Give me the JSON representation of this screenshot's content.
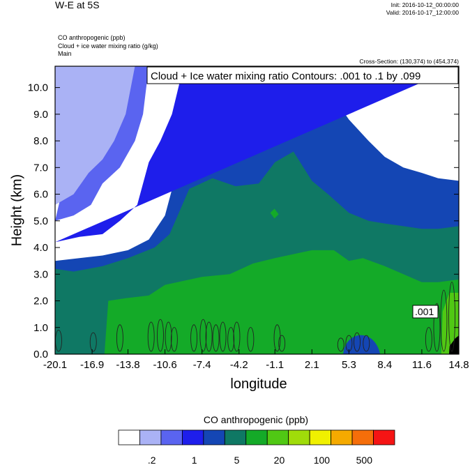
{
  "header": {
    "title": "W-E at 5S",
    "init": "Init: 2016-10-12_00:00:00",
    "valid": "Valid: 2016-10-17_12:00:00",
    "var1": "CO anthropogenic   (ppb)",
    "var2": "Cloud + ice water mixing ratio   (g/kg)",
    "var3": "Main",
    "cross_section": "Cross-Section: (130,374) to (454,374)"
  },
  "chart_data": {
    "type": "heatmap",
    "xlabel": "longitude",
    "ylabel": "Height (km)",
    "x_ticks": [
      "-20.1",
      "-16.9",
      "-13.8",
      "-10.6",
      "-7.4",
      "-4.2",
      "-1.1",
      "2.1",
      "5.3",
      "8.4",
      "11.6",
      "14.8"
    ],
    "y_ticks": [
      "0.0",
      "1.0",
      "2.0",
      "3.0",
      "4.0",
      "5.0",
      "6.0",
      "7.0",
      "8.0",
      "9.0",
      "10.0"
    ],
    "xlim": [
      -20.1,
      14.8
    ],
    "ylim": [
      0,
      10.8
    ],
    "contour_info": "Cloud + Ice water mixing ratio Contours: .001 to .1 by .099",
    "contour_label": ".001",
    "colorbar": {
      "title": "CO anthropogenic  (ppb)",
      "labels": [
        ".2",
        "1",
        "5",
        "20",
        "100",
        "500"
      ],
      "colors": [
        "#ffffff",
        "#aab2f5",
        "#5a64f0",
        "#1e1eeb",
        "#1446b4",
        "#0f7864",
        "#14aa28",
        "#50c814",
        "#a0dc0a",
        "#f0f000",
        "#f5aa00",
        "#f56e0a",
        "#f51414"
      ]
    },
    "layers": [
      {
        "level": "#0f7864",
        "top": [
          [
            -20.1,
            3.2
          ],
          [
            -18.5,
            3.1
          ],
          [
            -16,
            3.3
          ],
          [
            -13.8,
            3.6
          ],
          [
            -11.5,
            4.0
          ],
          [
            -10.2,
            4.5
          ],
          [
            -8.5,
            6.2
          ],
          [
            -6.5,
            6.6
          ],
          [
            -4.5,
            6.3
          ],
          [
            -2.5,
            6.4
          ],
          [
            -1.1,
            7.2
          ],
          [
            0.5,
            7.6
          ],
          [
            2.1,
            6.5
          ],
          [
            3.5,
            6.0
          ],
          [
            5.3,
            5.3
          ],
          [
            7,
            5.0
          ],
          [
            8.4,
            4.9
          ],
          [
            10,
            4.8
          ],
          [
            11.6,
            4.7
          ],
          [
            13,
            4.7
          ],
          [
            14.8,
            4.8
          ]
        ]
      },
      {
        "level": "#14aa28",
        "top": [
          [
            -20.1,
            -1
          ],
          [
            -16,
            -1
          ],
          [
            -15.5,
            2.0
          ],
          [
            -14,
            2.1
          ],
          [
            -12,
            2.2
          ],
          [
            -10.6,
            2.6
          ],
          [
            -7.4,
            2.9
          ],
          [
            -5,
            3.0
          ],
          [
            -3,
            3.4
          ],
          [
            -1.1,
            3.6
          ],
          [
            1,
            3.8
          ],
          [
            2.1,
            3.9
          ],
          [
            4,
            3.9
          ],
          [
            5.3,
            3.5
          ],
          [
            6.5,
            3.6
          ],
          [
            8.4,
            3.3
          ],
          [
            10,
            3.0
          ],
          [
            11.6,
            2.7
          ],
          [
            13,
            2.7
          ],
          [
            14.8,
            2.8
          ]
        ]
      },
      {
        "level": "#50c814",
        "top": [
          [
            -20.1,
            -1
          ],
          [
            13.2,
            -1
          ],
          [
            13.4,
            1.6
          ],
          [
            14.0,
            2.3
          ],
          [
            14.8,
            2.3
          ]
        ]
      },
      {
        "level": "#000000",
        "top": [
          [
            -20.1,
            -1
          ],
          [
            13.8,
            -1
          ],
          [
            14.0,
            0.3
          ],
          [
            14.5,
            0.6
          ],
          [
            14.8,
            0.7
          ]
        ]
      }
    ],
    "blue_layers": [
      {
        "level": "#1446b4",
        "top": [
          [
            -20.1,
            3.5
          ],
          [
            -18,
            3.6
          ],
          [
            -16,
            3.7
          ],
          [
            -13.8,
            3.9
          ],
          [
            -12,
            4.3
          ],
          [
            -10.6,
            5.2
          ],
          [
            -9,
            7.8
          ],
          [
            -7.4,
            9.6
          ],
          [
            -5,
            9.8
          ],
          [
            -3,
            9.1
          ],
          [
            -1.1,
            8.7
          ],
          [
            1,
            9.2
          ],
          [
            2.1,
            10.0
          ],
          [
            4,
            9.6
          ],
          [
            5.3,
            8.8
          ],
          [
            7,
            8.0
          ],
          [
            8.4,
            7.4
          ],
          [
            10,
            7.0
          ],
          [
            11.6,
            6.8
          ],
          [
            13,
            6.6
          ],
          [
            14.8,
            6.5
          ]
        ]
      },
      {
        "level": "#1e1eeb",
        "top": [
          [
            -20.1,
            4.2
          ],
          [
            -18,
            4.4
          ],
          [
            -16,
            4.5
          ],
          [
            -14.5,
            5.0
          ],
          [
            -13,
            5.6
          ],
          [
            -12,
            7.2
          ],
          [
            -11,
            8.0
          ],
          [
            -10,
            9.0
          ],
          [
            -9,
            10.8
          ],
          [
            14.8,
            10.8
          ]
        ]
      },
      {
        "level": "#5a64f0",
        "top": [
          [
            -20.1,
            5.0
          ],
          [
            -18.5,
            5.2
          ],
          [
            -17,
            5.6
          ],
          [
            -16,
            6.4
          ],
          [
            -14.5,
            7.0
          ],
          [
            -13.2,
            8.0
          ],
          [
            -12.5,
            9.0
          ],
          [
            -12,
            10.8
          ],
          [
            -17,
            10.8
          ]
        ]
      },
      {
        "level": "#aab2f5",
        "top": [
          [
            -20.1,
            5.6
          ],
          [
            -18.5,
            6.0
          ],
          [
            -17.2,
            6.8
          ],
          [
            -16,
            7.3
          ],
          [
            -15,
            8.0
          ],
          [
            -14,
            9.0
          ],
          [
            -13.2,
            10.8
          ],
          [
            -20.1,
            10.8
          ]
        ]
      }
    ]
  }
}
